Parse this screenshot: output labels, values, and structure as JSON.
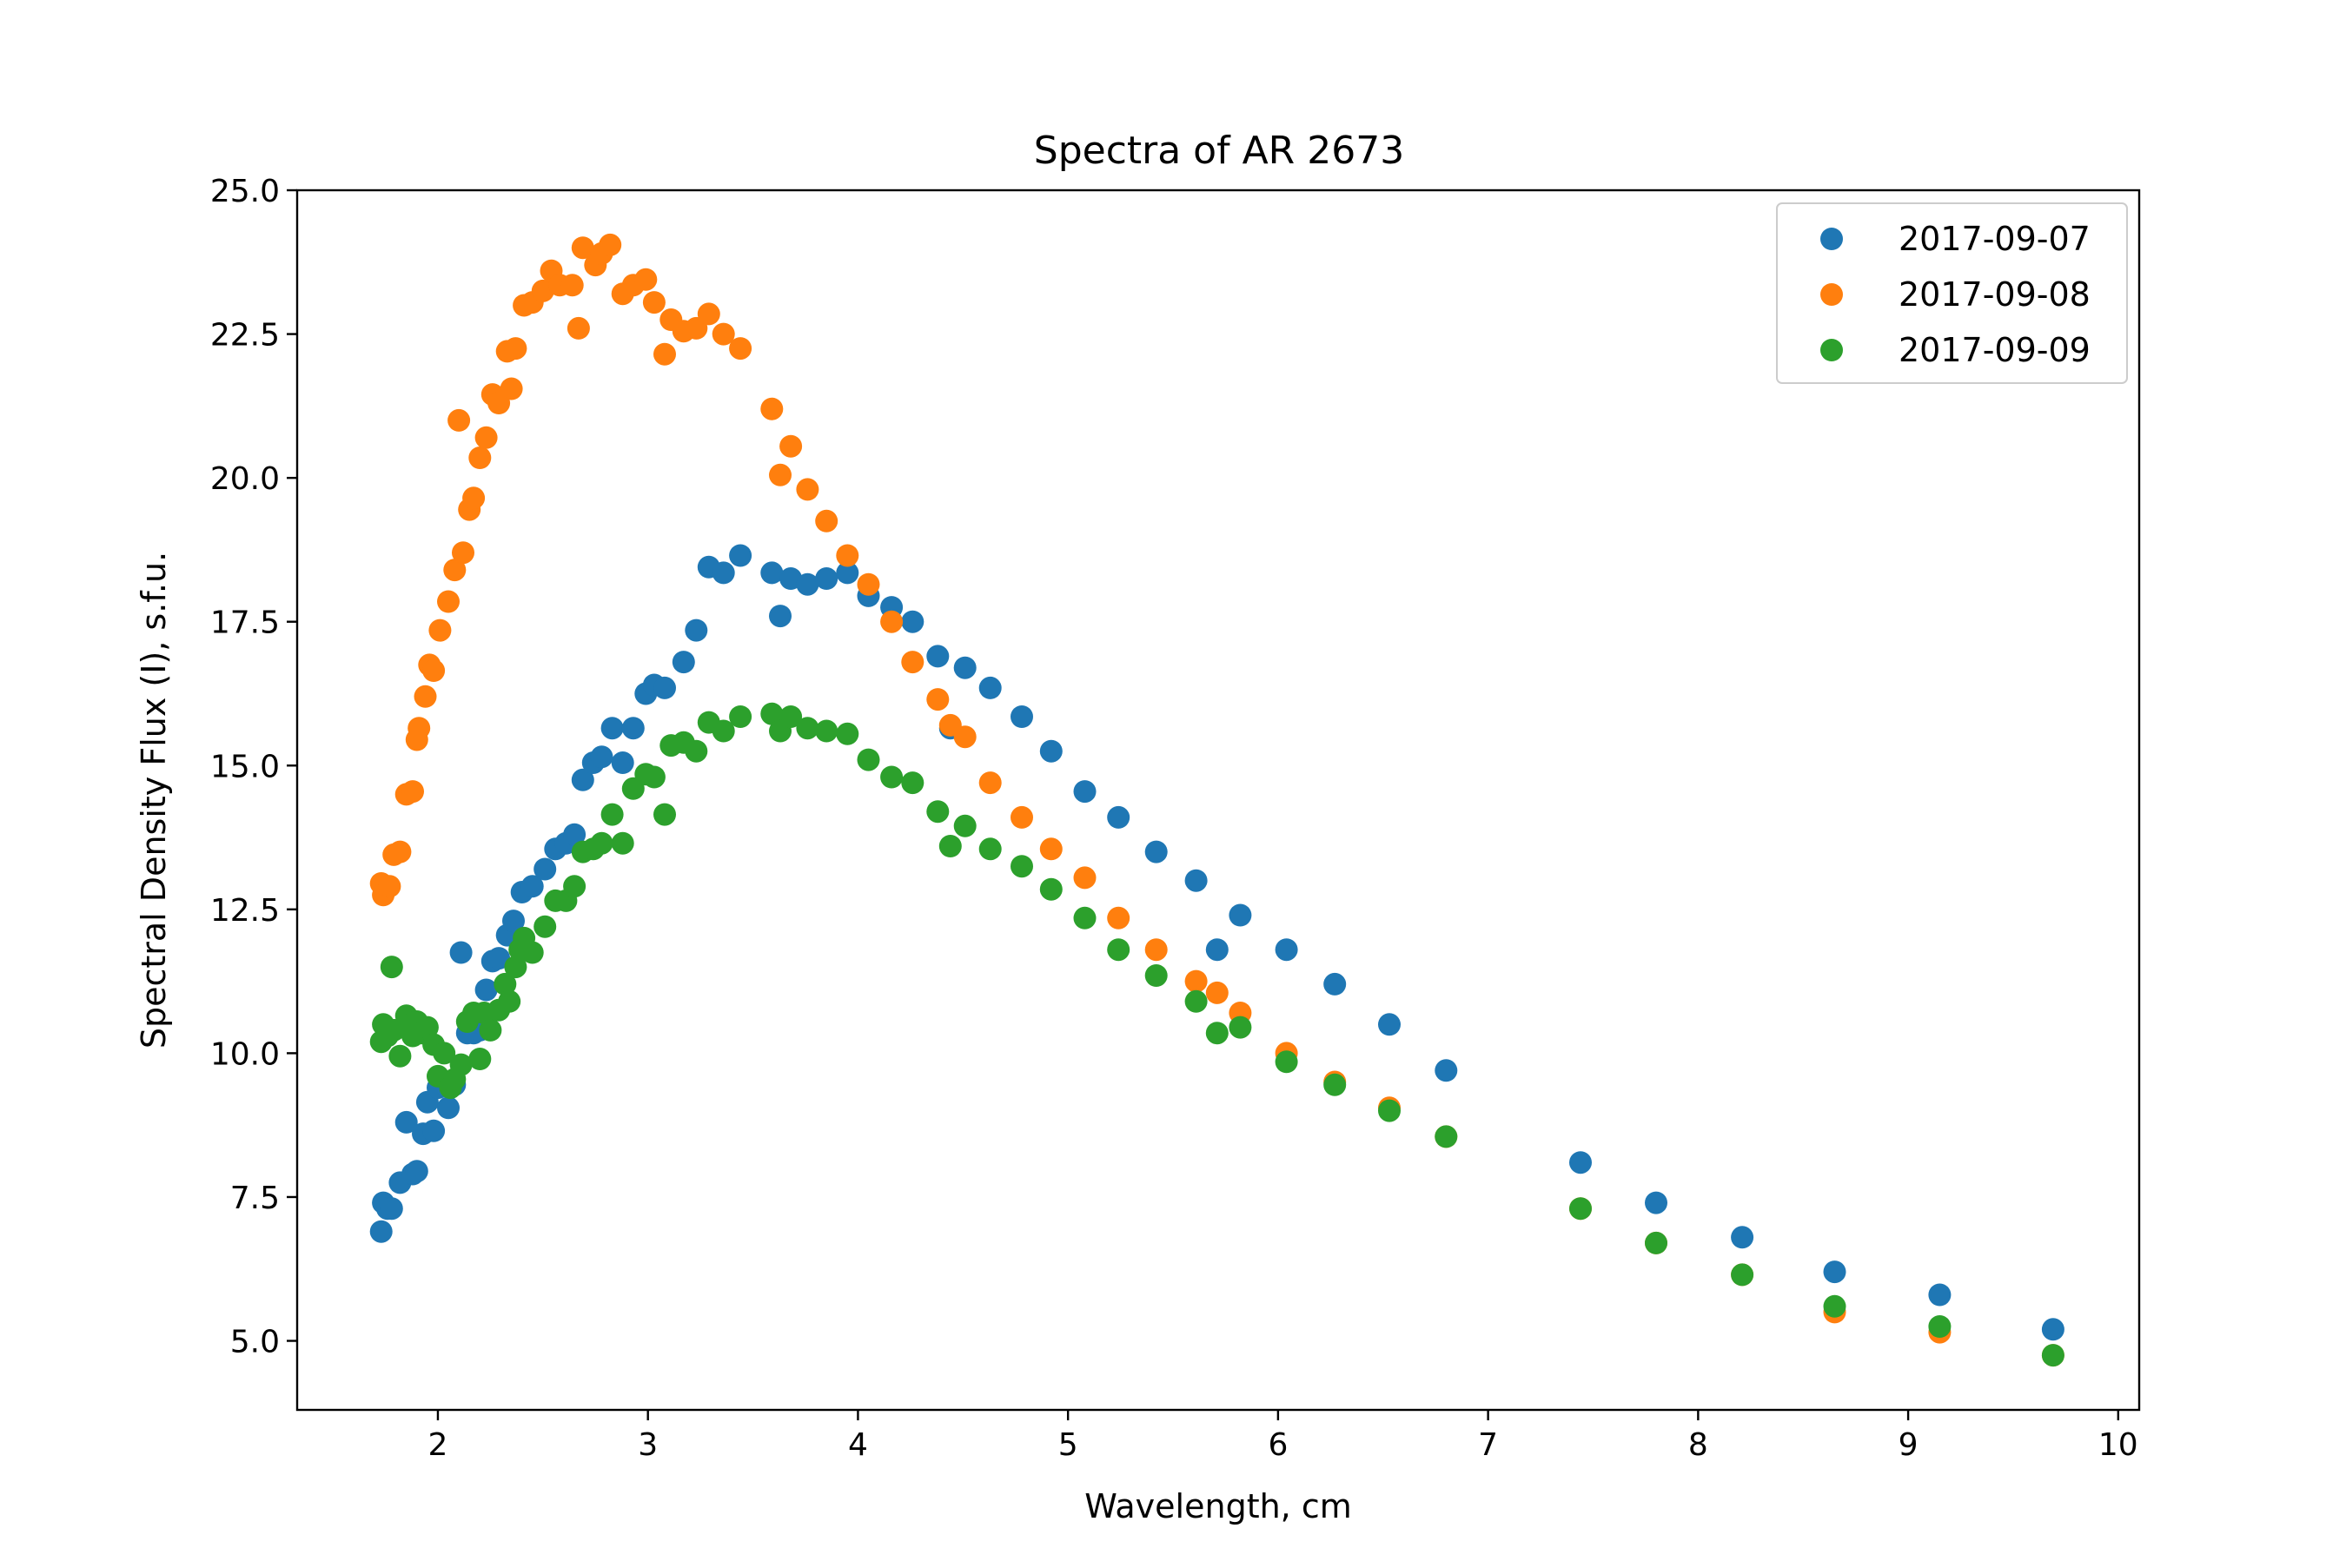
{
  "chart_data": {
    "type": "scatter",
    "title": "Spectra of AR 2673",
    "xlabel": "Wavelength, cm",
    "ylabel": "Spectral Density Flux (I), s.f.u.",
    "xlim": [
      1.33,
      10.1
    ],
    "ylim": [
      3.8,
      25.0
    ],
    "xticks": [
      2,
      3,
      4,
      5,
      6,
      7,
      8,
      9,
      10
    ],
    "xtick_labels": [
      "2",
      "3",
      "4",
      "5",
      "6",
      "7",
      "8",
      "9",
      "10"
    ],
    "yticks": [
      5.0,
      7.5,
      10.0,
      12.5,
      15.0,
      17.5,
      20.0,
      22.5,
      25.0
    ],
    "ytick_labels": [
      "5.0",
      "7.5",
      "10.0",
      "12.5",
      "15.0",
      "17.5",
      "20.0",
      "22.5",
      "25.0"
    ],
    "grid": false,
    "legend_position": "top-right",
    "series": [
      {
        "name": "2017-09-07",
        "color": "#1f77b4",
        "x": [
          1.73,
          1.74,
          1.76,
          1.78,
          1.82,
          1.85,
          1.88,
          1.9,
          1.93,
          1.95,
          1.98,
          2.0,
          2.05,
          2.08,
          2.11,
          2.14,
          2.17,
          2.2,
          2.23,
          2.26,
          2.29,
          2.33,
          2.36,
          2.4,
          2.45,
          2.51,
          2.56,
          2.61,
          2.65,
          2.69,
          2.74,
          2.78,
          2.83,
          2.88,
          2.93,
          2.99,
          3.03,
          3.08,
          3.17,
          3.23,
          3.29,
          3.36,
          3.44,
          3.59,
          3.63,
          3.68,
          3.76,
          3.85,
          3.95,
          4.05,
          4.16,
          4.26,
          4.38,
          4.44,
          4.51,
          4.63,
          4.78,
          4.92,
          5.08,
          5.24,
          5.42,
          5.61,
          5.71,
          5.82,
          6.04,
          6.27,
          6.53,
          6.8,
          7.44,
          7.8,
          8.21,
          8.65,
          9.15,
          9.69
        ],
        "y": [
          6.9,
          7.4,
          7.3,
          7.3,
          7.75,
          8.8,
          7.9,
          7.95,
          8.6,
          9.15,
          8.65,
          9.4,
          9.05,
          9.45,
          11.75,
          10.35,
          10.35,
          10.4,
          11.1,
          11.6,
          11.65,
          12.05,
          12.3,
          12.8,
          12.9,
          13.2,
          13.55,
          13.65,
          13.8,
          14.75,
          15.05,
          15.15,
          15.65,
          15.05,
          15.65,
          16.25,
          16.4,
          16.35,
          16.8,
          17.35,
          18.45,
          18.35,
          18.65,
          18.35,
          17.6,
          18.25,
          18.15,
          18.25,
          18.35,
          17.95,
          17.75,
          17.5,
          16.9,
          15.65,
          16.7,
          16.35,
          15.85,
          15.25,
          14.55,
          14.1,
          13.5,
          13.0,
          11.8,
          12.4,
          11.8,
          11.2,
          10.5,
          9.7,
          8.1,
          7.4,
          6.8,
          6.2,
          5.8,
          5.2
        ]
      },
      {
        "name": "2017-09-08",
        "color": "#ff7f0e",
        "x": [
          1.73,
          1.74,
          1.77,
          1.79,
          1.82,
          1.85,
          1.88,
          1.9,
          1.91,
          1.94,
          1.96,
          1.98,
          2.01,
          2.05,
          2.08,
          2.1,
          2.12,
          2.15,
          2.17,
          2.2,
          2.23,
          2.26,
          2.29,
          2.33,
          2.35,
          2.37,
          2.41,
          2.45,
          2.5,
          2.54,
          2.58,
          2.64,
          2.67,
          2.69,
          2.75,
          2.78,
          2.82,
          2.88,
          2.93,
          2.99,
          3.03,
          3.08,
          3.11,
          3.17,
          3.23,
          3.29,
          3.36,
          3.44,
          3.59,
          3.63,
          3.68,
          3.76,
          3.85,
          3.95,
          4.05,
          4.16,
          4.26,
          4.38,
          4.44,
          4.51,
          4.63,
          4.78,
          4.92,
          5.08,
          5.24,
          5.42,
          5.61,
          5.71,
          5.82,
          6.04,
          6.27,
          6.53,
          6.8,
          7.44,
          7.8,
          8.21,
          8.65,
          9.15,
          9.69
        ],
        "y": [
          12.95,
          12.75,
          12.9,
          13.45,
          13.5,
          14.5,
          14.55,
          15.45,
          15.65,
          16.2,
          16.75,
          16.65,
          17.35,
          17.85,
          18.4,
          21.0,
          18.7,
          19.45,
          19.65,
          20.35,
          20.7,
          21.45,
          21.3,
          22.2,
          21.55,
          22.25,
          23.0,
          23.05,
          23.25,
          23.6,
          23.35,
          23.35,
          22.6,
          24.0,
          23.7,
          23.9,
          24.05,
          23.2,
          23.35,
          23.45,
          23.05,
          22.15,
          22.75,
          22.55,
          22.6,
          22.85,
          22.5,
          22.25,
          21.2,
          20.05,
          20.55,
          19.8,
          19.25,
          18.65,
          18.15,
          17.5,
          16.8,
          16.15,
          15.7,
          15.5,
          14.7,
          14.1,
          13.55,
          13.05,
          12.35,
          11.8,
          11.25,
          11.05,
          10.7,
          10.0,
          9.5,
          9.05,
          8.55,
          7.3,
          6.7,
          6.15,
          5.5,
          5.15,
          4.75
        ]
      },
      {
        "name": "2017-09-09",
        "color": "#2ca02c",
        "x": [
          1.73,
          1.74,
          1.76,
          1.78,
          1.79,
          1.82,
          1.85,
          1.87,
          1.88,
          1.9,
          1.92,
          1.95,
          1.98,
          2.0,
          2.03,
          2.06,
          2.08,
          2.11,
          2.14,
          2.17,
          2.2,
          2.22,
          2.25,
          2.29,
          2.32,
          2.34,
          2.37,
          2.39,
          2.41,
          2.45,
          2.51,
          2.56,
          2.61,
          2.65,
          2.69,
          2.74,
          2.78,
          2.83,
          2.88,
          2.93,
          2.99,
          3.03,
          3.08,
          3.11,
          3.17,
          3.23,
          3.29,
          3.36,
          3.44,
          3.59,
          3.63,
          3.68,
          3.76,
          3.85,
          3.95,
          4.05,
          4.16,
          4.26,
          4.38,
          4.44,
          4.51,
          4.63,
          4.78,
          4.92,
          5.08,
          5.24,
          5.42,
          5.61,
          5.71,
          5.82,
          6.04,
          6.27,
          6.53,
          6.8,
          7.44,
          7.8,
          8.21,
          8.65,
          9.15,
          9.69
        ],
        "y": [
          10.2,
          10.5,
          10.3,
          11.5,
          10.4,
          9.95,
          10.65,
          10.5,
          10.3,
          10.55,
          10.35,
          10.45,
          10.15,
          9.6,
          10.0,
          9.4,
          9.55,
          9.8,
          10.55,
          10.7,
          9.9,
          10.7,
          10.4,
          10.75,
          11.2,
          10.9,
          11.5,
          11.8,
          12.0,
          11.75,
          12.2,
          12.65,
          12.65,
          12.9,
          13.5,
          13.55,
          13.65,
          14.15,
          13.65,
          14.6,
          14.85,
          14.8,
          14.15,
          15.35,
          15.4,
          15.25,
          15.75,
          15.6,
          15.85,
          15.9,
          15.6,
          15.85,
          15.65,
          15.6,
          15.55,
          15.1,
          14.8,
          14.7,
          14.2,
          13.6,
          13.95,
          13.55,
          13.25,
          12.85,
          12.35,
          11.8,
          11.35,
          10.9,
          10.35,
          10.45,
          9.85,
          9.45,
          9.0,
          8.55,
          7.3,
          6.7,
          6.15,
          5.6,
          5.25,
          4.75
        ]
      }
    ]
  }
}
